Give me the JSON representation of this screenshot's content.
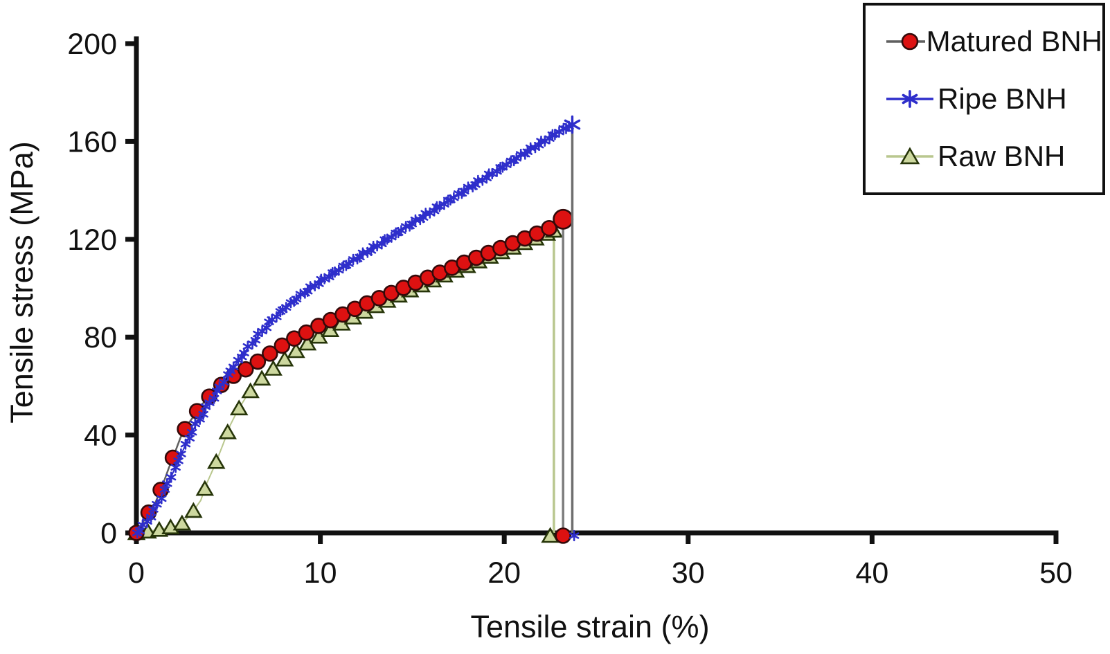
{
  "chart_data": {
    "type": "line",
    "title": "",
    "xlabel": "Tensile strain (%)",
    "ylabel": "Tensile stress (MPa)",
    "xlim": [
      0,
      50
    ],
    "ylim": [
      0,
      200
    ],
    "x_ticks": [
      0,
      10,
      20,
      30,
      40,
      50
    ],
    "y_ticks": [
      0,
      40,
      80,
      120,
      160,
      200
    ],
    "grid": false,
    "legend_position": "top-right",
    "axis_color": "#111111",
    "z_order": [
      2,
      0,
      1
    ],
    "series": [
      {
        "name": "Matured BNH",
        "marker": "circle",
        "marker_size": 10.5,
        "marker_step": 0.66,
        "fill": "#dd1111",
        "edge": "#330a0a",
        "line_color": "#5f5f5f",
        "line_width": 2.5,
        "break_strain": 23.2,
        "break_stress": 128.2,
        "drop_color": "#7d7d7d",
        "bottom_marker_strain": 23.2,
        "end_scale": 1.3,
        "points": [
          [
            0,
            0
          ],
          [
            0.2,
            2.5
          ],
          [
            0.45,
            5.5
          ],
          [
            0.75,
            9.5
          ],
          [
            1.05,
            12.7
          ],
          [
            1.4,
            19
          ],
          [
            1.75,
            26.3
          ],
          [
            2.1,
            33
          ],
          [
            2.4,
            39
          ],
          [
            2.75,
            44
          ],
          [
            3.1,
            47.5
          ],
          [
            3.5,
            52
          ],
          [
            3.9,
            55.2
          ],
          [
            4.3,
            58.5
          ],
          [
            4.7,
            61
          ],
          [
            5.1,
            63.5
          ],
          [
            5.6,
            65.5
          ],
          [
            6.1,
            67.5
          ],
          [
            6.6,
            70
          ],
          [
            7.1,
            72.5
          ],
          [
            7.7,
            75.5
          ],
          [
            8.4,
            78.8
          ],
          [
            9.15,
            81.5
          ],
          [
            10,
            85
          ],
          [
            11,
            88.5
          ],
          [
            12,
            92
          ],
          [
            13,
            95.3
          ],
          [
            14,
            98.5
          ],
          [
            15,
            101.7
          ],
          [
            16,
            104.8
          ],
          [
            17,
            107.9
          ],
          [
            18,
            111
          ],
          [
            19,
            114
          ],
          [
            20,
            117
          ],
          [
            21,
            120
          ],
          [
            22,
            123
          ],
          [
            22.8,
            125.8
          ],
          [
            23.2,
            128.2
          ]
        ]
      },
      {
        "name": "Ripe BNH",
        "marker": "asterisk",
        "marker_size": 6.8,
        "marker_step": 0.19,
        "fill": "#2e2ecb",
        "edge": "#2e2ecb",
        "line_color": "#2e2ecb",
        "line_width": 2,
        "break_strain": 23.7,
        "break_stress": 166.9,
        "drop_color": "#6f6f6f",
        "bottom_marker_strain": 23.8,
        "end_scale": 1.7,
        "points": [
          [
            0,
            0
          ],
          [
            0.3,
            2
          ],
          [
            0.6,
            5
          ],
          [
            0.9,
            8.5
          ],
          [
            1.2,
            12.5
          ],
          [
            1.5,
            17
          ],
          [
            1.8,
            21.5
          ],
          [
            2.1,
            26.5
          ],
          [
            2.4,
            31.5
          ],
          [
            2.7,
            36.5
          ],
          [
            3.0,
            41
          ],
          [
            3.3,
            45
          ],
          [
            3.7,
            50
          ],
          [
            4.1,
            54.5
          ],
          [
            4.5,
            59
          ],
          [
            5.0,
            65
          ],
          [
            5.5,
            70
          ],
          [
            6.0,
            75
          ],
          [
            6.5,
            79.5
          ],
          [
            7.0,
            84
          ],
          [
            7.5,
            88
          ],
          [
            8.0,
            91.5
          ],
          [
            8.5,
            94.5
          ],
          [
            9.0,
            97.5
          ],
          [
            10,
            102.8
          ],
          [
            11,
            107.6
          ],
          [
            12,
            112.3
          ],
          [
            13,
            117
          ],
          [
            14,
            121.8
          ],
          [
            15,
            126.5
          ],
          [
            16,
            131.2
          ],
          [
            17,
            135.9
          ],
          [
            18,
            140.6
          ],
          [
            19,
            145.3
          ],
          [
            20,
            150
          ],
          [
            21,
            154.7
          ],
          [
            22,
            159.4
          ],
          [
            23,
            164.1
          ],
          [
            23.7,
            166.9
          ]
        ]
      },
      {
        "name": "Raw BNH",
        "marker": "triangle",
        "marker_size": 10,
        "marker_step": 0.62,
        "fill": "#cdd89f",
        "edge": "#263509",
        "line_color": "#b9c78e",
        "line_width": 2,
        "break_strain": 22.7,
        "break_stress": 123.6,
        "drop_color": "#b9c78e",
        "bottom_marker_strain": 22.5,
        "end_scale": 1.0,
        "points": [
          [
            0,
            0
          ],
          [
            0.6,
            0.6
          ],
          [
            1.3,
            1.4
          ],
          [
            2.0,
            2.6
          ],
          [
            2.5,
            4
          ],
          [
            3.0,
            8
          ],
          [
            3.5,
            13.3
          ],
          [
            3.8,
            19.8
          ],
          [
            4.3,
            28.3
          ],
          [
            4.7,
            36
          ],
          [
            5.1,
            44
          ],
          [
            5.5,
            50
          ],
          [
            6.0,
            56
          ],
          [
            6.5,
            61
          ],
          [
            7.1,
            65
          ],
          [
            7.8,
            69.5
          ],
          [
            8.6,
            74
          ],
          [
            9.4,
            78
          ],
          [
            10.2,
            81.5
          ],
          [
            11,
            85
          ],
          [
            12,
            89
          ],
          [
            13,
            92.7
          ],
          [
            14,
            96.2
          ],
          [
            15,
            99.6
          ],
          [
            16,
            102.9
          ],
          [
            17,
            106.1
          ],
          [
            18,
            109.2
          ],
          [
            19,
            112.3
          ],
          [
            20,
            115.3
          ],
          [
            21,
            118.3
          ],
          [
            22,
            121.3
          ],
          [
            22.7,
            123.6
          ]
        ]
      }
    ]
  },
  "legend": {
    "items": [
      {
        "label": "Matured BNH",
        "series": 0
      },
      {
        "label": "Ripe BNH",
        "series": 1
      },
      {
        "label": "Raw BNH",
        "series": 2
      }
    ]
  }
}
